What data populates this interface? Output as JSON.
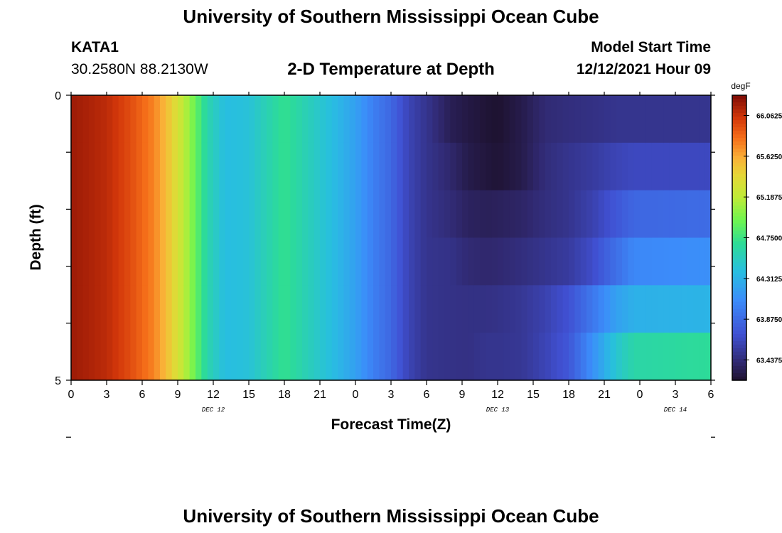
{
  "page": {
    "title_top": "University of Southern Mississippi Ocean Cube",
    "title_bottom": "University of Southern Mississippi Ocean Cube",
    "station": "KATA1",
    "coords": "30.2580N  88.2130W",
    "model_label": "Model Start Time",
    "model_time": "12/12/2021 Hour 09"
  },
  "chart_data": {
    "type": "heatmap",
    "title": "2-D Temperature at Depth",
    "xlabel": "Forecast Time(Z)",
    "ylabel": "Depth (ft)",
    "x_range_hours": [
      0,
      54
    ],
    "x_tick_labels": [
      "0",
      "3",
      "6",
      "9",
      "12",
      "15",
      "18",
      "21",
      "0",
      "3",
      "6",
      "9",
      "12",
      "15",
      "18",
      "21",
      "0",
      "3",
      "6"
    ],
    "date_labels": [
      {
        "hour": 12,
        "label": "DEC 12"
      },
      {
        "hour": 36,
        "label": "DEC 13"
      },
      {
        "hour": 51,
        "label": "DEC 14"
      }
    ],
    "y_range": [
      0,
      5
    ],
    "y_tick_labels": [
      "0",
      "5"
    ],
    "depth_layers": [
      0,
      1,
      2,
      3,
      4,
      5
    ],
    "colorbar": {
      "unit": "degF",
      "min": 63.22,
      "max": 66.28,
      "tick_values": [
        "66.0625",
        "65.6250",
        "65.1875",
        "64.7500",
        "64.3125",
        "63.8750",
        "63.4375"
      ]
    },
    "time_profile": [
      {
        "hour": 0,
        "temps": [
          66.19,
          66.19,
          66.19,
          66.19,
          66.19,
          66.19
        ]
      },
      {
        "hour": 3,
        "temps": [
          66.1,
          66.1,
          66.1,
          66.1,
          66.1,
          66.1
        ]
      },
      {
        "hour": 5,
        "temps": [
          65.95,
          65.95,
          65.95,
          65.95,
          65.95,
          65.95
        ]
      },
      {
        "hour": 7,
        "temps": [
          65.75,
          65.75,
          65.75,
          65.75,
          65.75,
          65.75
        ]
      },
      {
        "hour": 8.5,
        "temps": [
          65.45,
          65.45,
          65.45,
          65.45,
          65.45,
          65.45
        ]
      },
      {
        "hour": 10,
        "temps": [
          65.05,
          65.05,
          65.05,
          65.05,
          65.05,
          65.05
        ]
      },
      {
        "hour": 11.5,
        "temps": [
          64.6,
          64.6,
          64.6,
          64.6,
          64.6,
          64.6
        ]
      },
      {
        "hour": 13,
        "temps": [
          64.38,
          64.38,
          64.38,
          64.38,
          64.38,
          64.38
        ]
      },
      {
        "hour": 15,
        "temps": [
          64.42,
          64.42,
          64.42,
          64.42,
          64.42,
          64.42
        ]
      },
      {
        "hour": 17,
        "temps": [
          64.62,
          64.62,
          64.62,
          64.62,
          64.62,
          64.62
        ]
      },
      {
        "hour": 18,
        "temps": [
          64.72,
          64.72,
          64.72,
          64.72,
          64.72,
          64.72
        ]
      },
      {
        "hour": 20,
        "temps": [
          64.55,
          64.55,
          64.55,
          64.55,
          64.55,
          64.55
        ]
      },
      {
        "hour": 22,
        "temps": [
          64.38,
          64.38,
          64.38,
          64.38,
          64.38,
          64.38
        ]
      },
      {
        "hour": 24,
        "temps": [
          64.2,
          64.2,
          64.2,
          64.2,
          64.2,
          64.2
        ]
      },
      {
        "hour": 25.5,
        "temps": [
          64.0,
          64.0,
          64.0,
          64.0,
          64.0,
          64.0
        ]
      },
      {
        "hour": 27,
        "temps": [
          63.85,
          63.85,
          63.85,
          63.85,
          63.85,
          63.85
        ]
      },
      {
        "hour": 28.5,
        "temps": [
          63.62,
          63.62,
          63.62,
          63.62,
          63.62,
          63.62
        ]
      },
      {
        "hour": 30,
        "temps": [
          63.5,
          63.5,
          63.5,
          63.5,
          63.5,
          63.5
        ]
      },
      {
        "hour": 32,
        "temps": [
          63.33,
          63.4,
          63.43,
          63.48,
          63.48,
          63.48
        ]
      },
      {
        "hour": 33.5,
        "temps": [
          63.28,
          63.3,
          63.36,
          63.42,
          63.47,
          63.47
        ]
      },
      {
        "hour": 35,
        "temps": [
          63.24,
          63.26,
          63.34,
          63.4,
          63.47,
          63.5
        ]
      },
      {
        "hour": 36,
        "temps": [
          63.22,
          63.24,
          63.35,
          63.41,
          63.48,
          63.5
        ]
      },
      {
        "hour": 38,
        "temps": [
          63.3,
          63.3,
          63.38,
          63.45,
          63.52,
          63.52
        ]
      },
      {
        "hour": 40,
        "temps": [
          63.42,
          63.44,
          63.45,
          63.5,
          63.6,
          63.62
        ]
      },
      {
        "hour": 42,
        "temps": [
          63.45,
          63.5,
          63.5,
          63.55,
          63.72,
          63.75
        ]
      },
      {
        "hour": 44,
        "temps": [
          63.47,
          63.55,
          63.6,
          63.68,
          63.95,
          64.1
        ]
      },
      {
        "hour": 46,
        "temps": [
          63.5,
          63.62,
          63.75,
          63.9,
          64.2,
          64.45
        ]
      },
      {
        "hour": 47.5,
        "temps": [
          63.5,
          63.65,
          63.85,
          64.05,
          64.3,
          64.62
        ]
      },
      {
        "hour": 54,
        "temps": [
          63.5,
          63.65,
          63.88,
          64.1,
          64.32,
          64.68
        ]
      }
    ]
  }
}
